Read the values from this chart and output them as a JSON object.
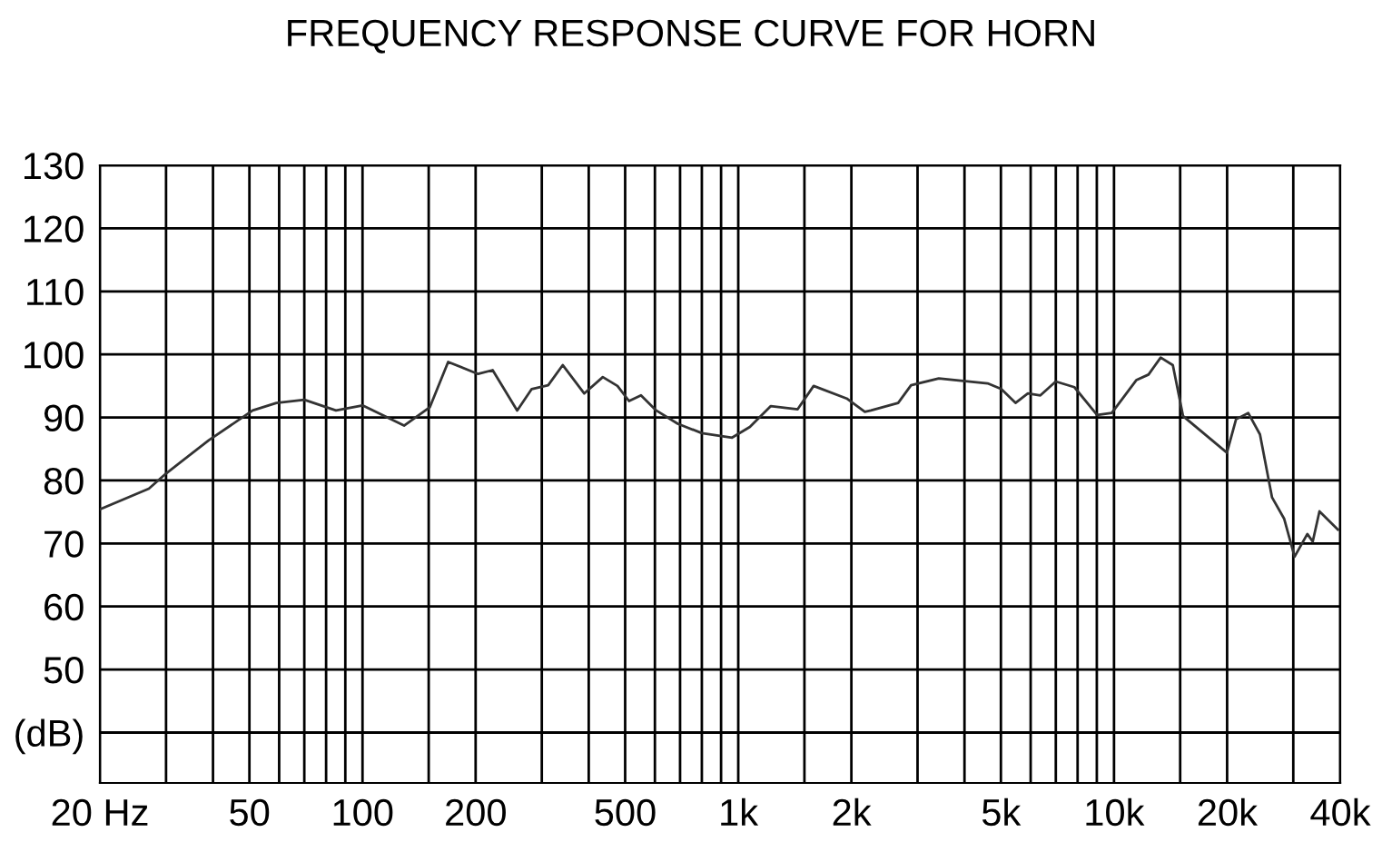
{
  "chart_data": {
    "type": "line",
    "title": "FREQUENCY RESPONSE CURVE FOR HORN",
    "log": "x",
    "grid": true,
    "legend": false,
    "marker": "none",
    "line_style": "solid",
    "xlim": [
      20,
      40000
    ],
    "ylim": [
      32,
      130
    ],
    "xticks": [
      {
        "value": 20,
        "label": "20 Hz"
      },
      {
        "value": 30,
        "label": null
      },
      {
        "value": 40,
        "label": null
      },
      50,
      {
        "value": 60,
        "label": null
      },
      {
        "value": 70,
        "label": null
      },
      {
        "value": 80,
        "label": null
      },
      {
        "value": 90,
        "label": null
      },
      100,
      {
        "value": 150,
        "label": null
      },
      200,
      {
        "value": 300,
        "label": null
      },
      {
        "value": 400,
        "label": null
      },
      500,
      {
        "value": 600,
        "label": null
      },
      {
        "value": 700,
        "label": null
      },
      {
        "value": 800,
        "label": null
      },
      {
        "value": 900,
        "label": null
      },
      {
        "value": 1000,
        "label": "1k"
      },
      {
        "value": 1500,
        "label": null
      },
      {
        "value": 2000,
        "label": "2k"
      },
      {
        "value": 3000,
        "label": null
      },
      {
        "value": 4000,
        "label": null
      },
      {
        "value": 5000,
        "label": "5k"
      },
      {
        "value": 6000,
        "label": null
      },
      {
        "value": 7000,
        "label": null
      },
      {
        "value": 8000,
        "label": null
      },
      {
        "value": 9000,
        "label": null
      },
      {
        "value": 10000,
        "label": "10k"
      },
      {
        "value": 15000,
        "label": null
      },
      {
        "value": 20000,
        "label": "20k"
      },
      {
        "value": 30000,
        "label": null
      },
      {
        "value": 40000,
        "label": "40k"
      }
    ],
    "yticks": [
      {
        "value": 40,
        "label": "(dB)"
      },
      50,
      60,
      70,
      80,
      90,
      100,
      110,
      120,
      130
    ],
    "series": [
      {
        "color": "#333333",
        "x": [
          20,
          27,
          30,
          39,
          51,
          59,
          70,
          85,
          100,
          129,
          151,
          169,
          203,
          222,
          258,
          282,
          312,
          341,
          389,
          436,
          477,
          512,
          551,
          605,
          690,
          800,
          963,
          1074,
          1221,
          1439,
          1587,
          1943,
          2172,
          2254,
          2664,
          2883,
          3417,
          4608,
          5011,
          5468,
          5898,
          6369,
          6998,
          7844,
          9017,
          9866,
          11460,
          12357,
          13312,
          14340,
          15270,
          19975,
          21123,
          22760,
          24460,
          26340,
          28380,
          30240,
          32700,
          33800,
          35220,
          39420
        ],
        "values": [
          75.4,
          78.7,
          81.1,
          86.4,
          91.1,
          92.3,
          92.8,
          91.1,
          91.9,
          88.7,
          91.6,
          98.8,
          96.9,
          97.5,
          91.1,
          94.5,
          95.1,
          98.3,
          93.8,
          96.4,
          95,
          92.6,
          93.5,
          91.1,
          89,
          87.5,
          86.8,
          88.5,
          91.8,
          91.3,
          95,
          93,
          90.9,
          91.1,
          92.3,
          95.1,
          96.2,
          95.4,
          94.5,
          92.3,
          93.8,
          93.5,
          95.7,
          94.8,
          90.4,
          90.7,
          95.9,
          96.8,
          99.5,
          98.3,
          90.2,
          84.4,
          89.7,
          90.7,
          87.3,
          77.3,
          73.9,
          67.9,
          71.5,
          70.3,
          75.1,
          72.2
        ]
      }
    ]
  }
}
